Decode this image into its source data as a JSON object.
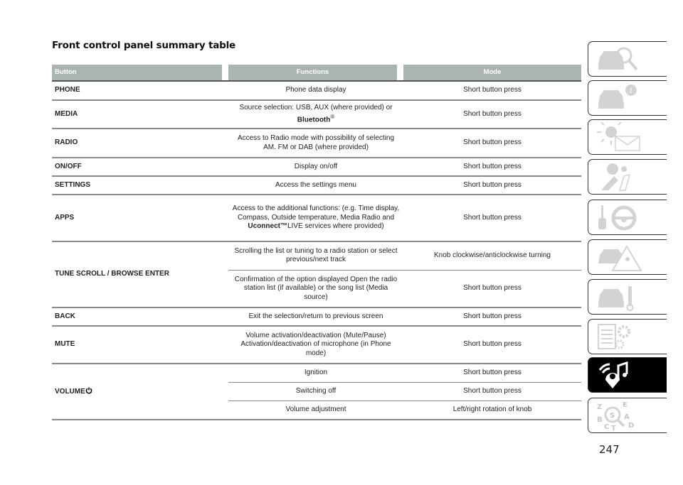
{
  "page": {
    "title": "Front control panel summary table",
    "page_number": "247"
  },
  "table": {
    "headers": [
      "Button",
      "Functions",
      "Mode"
    ],
    "rows": [
      {
        "button": "PHONE",
        "function": "Phone data display",
        "mode": "Short button press"
      },
      {
        "button": "MEDIA",
        "function": "Source selection: USB, AUX (where provided) or",
        "function_bold": "Bluetooth",
        "function_sup": "®",
        "mode": "Short button press"
      },
      {
        "button": "RADIO",
        "function": "Access to Radio mode with possibility of selecting AM. FM or DAB (where provided)",
        "mode": "Short button press"
      },
      {
        "button": "ON/OFF",
        "function": "Display on/off",
        "mode": "Short button press"
      },
      {
        "button": "SETTINGS",
        "function": "Access the settings menu",
        "mode": "Short button press"
      },
      {
        "button": "APPS",
        "function_pre": "Access to the additional functions: (e.g. Time display, Compass, Outside temperature, Media Radio and",
        "function_bold": "Uconnect™",
        "function_post": "LIVE services where provided)",
        "mode": "Short button press"
      },
      {
        "button": "TUNE SCROLL / BROWSE ENTER",
        "subrows": [
          {
            "function": "Scrolling the list or tuning to a radio station or select previous/next track",
            "mode": "Knob clockwise/anticlockwise turning"
          },
          {
            "function": "Confirmation of the option displayed Open the radio station list (if available) or the song list (Media source)",
            "mode": "Short button press"
          }
        ]
      },
      {
        "button": "BACK",
        "function": "Exit the selection/return to previous screen",
        "mode": "Short button press"
      },
      {
        "button": "MUTE",
        "function": "Volume activation/deactivation (Mute/Pause) Activation/deactivation of microphone (in Phone mode)",
        "mode": "Short button press"
      },
      {
        "button": "VOLUME",
        "button_icon": "power-icon",
        "subrows": [
          {
            "function": "Ignition",
            "mode": "Short button press"
          },
          {
            "function": "Switching off",
            "mode": "Short button press"
          },
          {
            "function": "Volume adjustment",
            "mode": "Left/right rotation of knob"
          }
        ]
      }
    ]
  },
  "side_tabs": [
    {
      "icon": "car-search-icon"
    },
    {
      "icon": "car-info-icon"
    },
    {
      "icon": "warning-light-message-icon"
    },
    {
      "icon": "airbag-seat-icon"
    },
    {
      "icon": "key-steering-wheel-icon"
    },
    {
      "icon": "car-hazard-triangle-icon"
    },
    {
      "icon": "car-wrench-icon"
    },
    {
      "icon": "specs-gear-icon"
    },
    {
      "icon": "multimedia-icon",
      "active": true
    },
    {
      "icon": "alphabetical-index-icon",
      "letters": "ZSEBACTD"
    }
  ],
  "colors": {
    "header_bg": "#a9b4b3",
    "active_tab": "#000000",
    "icon_grey": "#d2d4d4"
  }
}
